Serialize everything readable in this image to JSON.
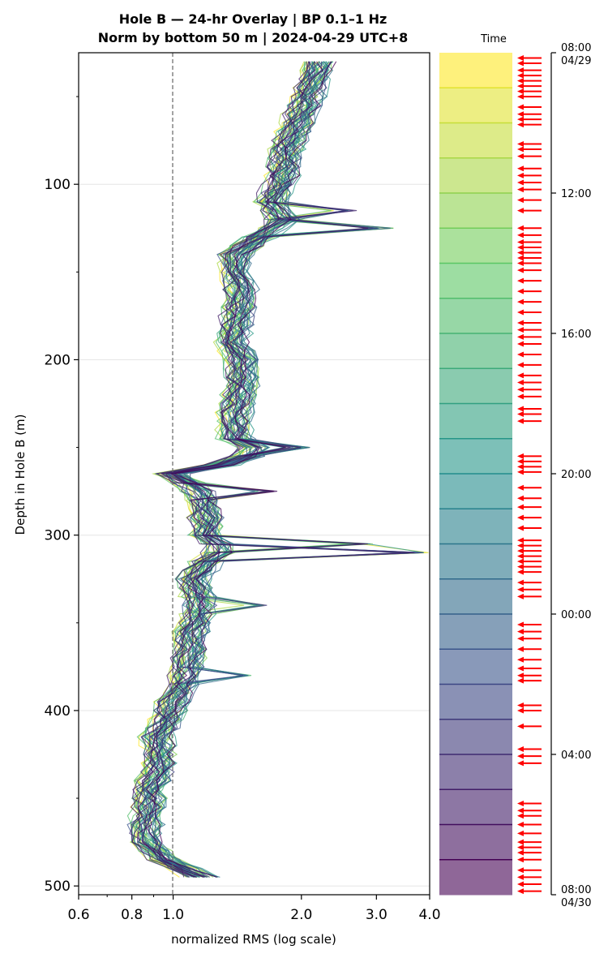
{
  "chart_data": {
    "type": "line",
    "title": "Hole B — 24-hr Overlay  |  BP 0.1–1 Hz",
    "subtitle": "Norm by bottom 50 m  |  2024-04-29 UTC+8",
    "xlabel": "normalized RMS  (log scale)",
    "ylabel": "Depth in Hole B (m)",
    "xscale": "log",
    "xlim": [
      0.6,
      4.0
    ],
    "ylim": [
      505,
      25
    ],
    "x_ticks": [
      0.6,
      0.8,
      1.0,
      2.0,
      3.0,
      4.0
    ],
    "x_tick_labels": [
      "0.6",
      "0.8",
      "1.0",
      "2.0",
      "3.0",
      "4.0"
    ],
    "y_ticks": [
      100,
      200,
      300,
      400,
      500
    ],
    "y_tick_labels": [
      "100",
      "200",
      "300",
      "400",
      "500"
    ],
    "reference_line_x": 1.0,
    "grid": true,
    "colormap": [
      "#440154",
      "#3b528b",
      "#21918c",
      "#5ec962",
      "#fde725"
    ],
    "n_traces": 48,
    "depth_profile": [
      [
        30,
        2.2
      ],
      [
        45,
        2.1
      ],
      [
        60,
        2.0
      ],
      [
        80,
        1.85
      ],
      [
        100,
        1.8
      ],
      [
        110,
        1.7
      ],
      [
        120,
        1.8
      ],
      [
        130,
        1.6
      ],
      [
        140,
        1.4
      ],
      [
        150,
        1.4
      ],
      [
        160,
        1.45
      ],
      [
        175,
        1.42
      ],
      [
        190,
        1.38
      ],
      [
        200,
        1.45
      ],
      [
        215,
        1.45
      ],
      [
        230,
        1.4
      ],
      [
        245,
        1.4
      ],
      [
        252,
        1.6
      ],
      [
        260,
        1.3
      ],
      [
        265,
        1.0
      ],
      [
        272,
        1.12
      ],
      [
        280,
        1.18
      ],
      [
        290,
        1.2
      ],
      [
        300,
        1.2
      ],
      [
        308,
        1.3
      ],
      [
        315,
        1.2
      ],
      [
        325,
        1.12
      ],
      [
        335,
        1.15
      ],
      [
        345,
        1.15
      ],
      [
        355,
        1.1
      ],
      [
        365,
        1.1
      ],
      [
        375,
        1.08
      ],
      [
        385,
        1.05
      ],
      [
        395,
        1.0
      ],
      [
        405,
        0.97
      ],
      [
        415,
        0.92
      ],
      [
        425,
        0.93
      ],
      [
        435,
        0.92
      ],
      [
        445,
        0.88
      ],
      [
        455,
        0.88
      ],
      [
        465,
        0.86
      ],
      [
        475,
        0.87
      ],
      [
        485,
        0.95
      ],
      [
        492,
        1.1
      ],
      [
        497,
        1.2
      ]
    ],
    "notable_peaks": [
      {
        "depth": 115,
        "x": 2.7
      },
      {
        "depth": 127,
        "x": 3.35
      },
      {
        "depth": 250,
        "x": 2.1
      },
      {
        "depth": 275,
        "x": 1.8
      },
      {
        "depth": 307,
        "x": 3.0
      },
      {
        "depth": 308,
        "x": 4.0
      },
      {
        "depth": 340,
        "x": 1.7
      },
      {
        "depth": 380,
        "x": 1.55
      }
    ],
    "colorbar": {
      "label": "Time",
      "tick_labels": [
        "08:00\n04/29",
        "12:00",
        "16:00",
        "20:00",
        "00:00",
        "04:00",
        "08:00\n04/30"
      ],
      "tick_hours": [
        0,
        4,
        8,
        12,
        16,
        20,
        24
      ],
      "n_bands": 24,
      "event_arrow_color": "#ff0000",
      "event_hours": [
        0.15,
        0.3,
        0.5,
        0.65,
        0.8,
        0.95,
        1.1,
        1.25,
        1.55,
        1.75,
        1.9,
        2.05,
        2.6,
        2.75,
        2.95,
        3.3,
        3.5,
        3.7,
        3.9,
        4.2,
        4.5,
        5.0,
        5.2,
        5.4,
        5.55,
        5.7,
        5.85,
        6.0,
        6.2,
        6.5,
        6.8,
        7.1,
        7.4,
        7.7,
        7.9,
        8.1,
        8.3,
        8.6,
        8.9,
        9.2,
        9.4,
        9.6,
        9.8,
        10.15,
        10.3,
        10.5,
        11.5,
        11.65,
        11.8,
        11.95,
        12.4,
        12.7,
        12.95,
        13.25,
        13.55,
        13.9,
        14.05,
        14.2,
        14.35,
        14.5,
        14.65,
        14.8,
        15.1,
        15.3,
        15.5,
        16.3,
        16.5,
        16.7,
        17.0,
        17.3,
        17.55,
        17.75,
        17.9,
        18.6,
        18.75,
        19.2,
        19.85,
        20.05,
        20.25,
        21.4,
        21.6,
        21.75,
        22.0,
        22.25,
        22.5,
        22.65,
        22.8,
        23.0,
        23.3,
        23.5,
        23.7,
        23.9
      ]
    }
  }
}
